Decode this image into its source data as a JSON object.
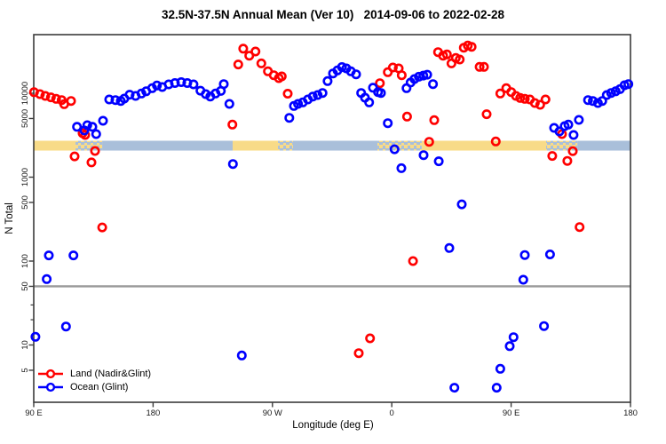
{
  "chart_data": {
    "type": "scatter",
    "title": "32.5N-37.5N Annual Mean (Ver 10)   2014-09-06 to 2022-02-28",
    "xlabel": "Longitude (deg E)",
    "ylabel": "N Total",
    "x_axis": {
      "note": "longitude axis wraps eastward from 90E through 180, 90W, 0 back to 180",
      "domain": [
        90,
        540
      ],
      "ticks": [
        {
          "value": 90,
          "label": "90 E"
        },
        {
          "value": 180,
          "label": "180"
        },
        {
          "value": 270,
          "label": "90 W"
        },
        {
          "value": 360,
          "label": "0"
        },
        {
          "value": 450,
          "label": "90 E"
        },
        {
          "value": 540,
          "label": "180"
        }
      ]
    },
    "y_axis": {
      "scale": "log",
      "range": [
        2.1,
        50000
      ],
      "ticks": [
        {
          "value": 10000,
          "label": "10000"
        },
        {
          "value": 5000,
          "label": "5000"
        },
        {
          "value": 1000,
          "label": "1000"
        },
        {
          "value": 500,
          "label": "500"
        },
        {
          "value": 100,
          "label": "100"
        },
        {
          "value": 50,
          "label": "50"
        },
        {
          "value": 10,
          "label": "10"
        },
        {
          "value": 5,
          "label": "5"
        }
      ],
      "minor_ticks": [
        30,
        20
      ]
    },
    "reference_line": {
      "value": 50,
      "color": "#999999"
    },
    "surface_strip": {
      "value_range": [
        2075,
        2715
      ],
      "colors": {
        "land": "#F8DB88",
        "ocean": "#A9BFDA"
      },
      "segments": [
        [
          90,
          121.5,
          "land"
        ],
        [
          121.5,
          141.6,
          "mixed"
        ],
        [
          141.6,
          240,
          "ocean"
        ],
        [
          240,
          274.2,
          "land"
        ],
        [
          274.2,
          285.5,
          "mixed"
        ],
        [
          285.5,
          349.2,
          "ocean"
        ],
        [
          349.2,
          382.6,
          "mixed"
        ],
        [
          382.6,
          476.4,
          "land"
        ],
        [
          476.4,
          499.9,
          "mixed"
        ],
        [
          499.9,
          540,
          "ocean"
        ]
      ]
    },
    "series": [
      {
        "name": "Land (Nadir&Glint)",
        "color": "#FF0000",
        "points": [
          [
            90.2,
            10300
          ],
          [
            94.7,
            9760
          ],
          [
            98.7,
            9290
          ],
          [
            102.9,
            8930
          ],
          [
            106.9,
            8580
          ],
          [
            111.0,
            8290
          ],
          [
            113.0,
            7410
          ],
          [
            118.1,
            8090
          ],
          [
            126.8,
            3340
          ],
          [
            128.8,
            3180
          ],
          [
            136.2,
            2050
          ],
          [
            120.8,
            1770
          ],
          [
            133.5,
            1500
          ],
          [
            141.6,
            252
          ],
          [
            239.8,
            4230
          ],
          [
            244.2,
            22000
          ],
          [
            248.0,
            34000
          ],
          [
            252.5,
            28050
          ],
          [
            257.2,
            31400
          ],
          [
            261.6,
            22700
          ],
          [
            266.6,
            18250
          ],
          [
            271.0,
            16400
          ],
          [
            274.8,
            15130
          ],
          [
            277.0,
            15880
          ],
          [
            281.5,
            9870
          ],
          [
            351.0,
            13180
          ],
          [
            357.0,
            17820
          ],
          [
            360.8,
            20280
          ],
          [
            365.2,
            19780
          ],
          [
            367.5,
            16400
          ],
          [
            371.5,
            5270
          ],
          [
            376.0,
            100
          ],
          [
            388.2,
            2640
          ],
          [
            392.0,
            4780
          ],
          [
            394.9,
            30900
          ],
          [
            398.7,
            28050
          ],
          [
            401.6,
            28970
          ],
          [
            405.0,
            22700
          ],
          [
            408.3,
            26300
          ],
          [
            411.2,
            25230
          ],
          [
            414.3,
            34900
          ],
          [
            417.3,
            36980
          ],
          [
            420.2,
            35730
          ],
          [
            426.2,
            20600
          ],
          [
            429.5,
            20600
          ],
          [
            431.5,
            5620
          ],
          [
            441.8,
            9930
          ],
          [
            446.3,
            11480
          ],
          [
            450.1,
            10320
          ],
          [
            453.6,
            9290
          ],
          [
            456.8,
            8790
          ],
          [
            460.3,
            8580
          ],
          [
            464.1,
            8430
          ],
          [
            467.9,
            7650
          ],
          [
            471.9,
            7280
          ],
          [
            475.9,
            8430
          ],
          [
            438.4,
            2660
          ],
          [
            481.0,
            1790
          ],
          [
            488.4,
            3260
          ],
          [
            496.5,
            2040
          ],
          [
            492.4,
            1560
          ],
          [
            501.6,
            254
          ],
          [
            343.6,
            12
          ],
          [
            335.1,
            8
          ]
        ]
      },
      {
        "name": "Ocean (Glint)",
        "color": "#0000FF",
        "points": [
          [
            146.9,
            8430
          ],
          [
            151.6,
            8290
          ],
          [
            155.6,
            8090
          ],
          [
            158.3,
            8650
          ],
          [
            162.3,
            9620
          ],
          [
            166.8,
            9290
          ],
          [
            171.2,
            9930
          ],
          [
            174.8,
            10560
          ],
          [
            179.3,
            11480
          ],
          [
            182.9,
            12360
          ],
          [
            186.9,
            11850
          ],
          [
            191.8,
            12760
          ],
          [
            196.5,
            13230
          ],
          [
            201.2,
            13550
          ],
          [
            205.8,
            13230
          ],
          [
            210.5,
            12760
          ],
          [
            215.7,
            10740
          ],
          [
            219.7,
            9750
          ],
          [
            223.1,
            9140
          ],
          [
            227.1,
            9930
          ],
          [
            231.1,
            10650
          ],
          [
            233.3,
            12850
          ],
          [
            237.5,
            7460
          ],
          [
            240.2,
            1435
          ],
          [
            122.6,
            3980
          ],
          [
            128.2,
            3600
          ],
          [
            130.4,
            4160
          ],
          [
            134.2,
            3980
          ],
          [
            137.1,
            3260
          ],
          [
            142.2,
            4700
          ],
          [
            91.3,
            12.5
          ],
          [
            114.3,
            16.6
          ],
          [
            99.8,
            61
          ],
          [
            101.4,
            117
          ],
          [
            119.9,
            117
          ],
          [
            282.7,
            5090
          ],
          [
            286.2,
            7060
          ],
          [
            289.3,
            7460
          ],
          [
            292.9,
            7780
          ],
          [
            296.7,
            8430
          ],
          [
            300.5,
            9140
          ],
          [
            304.1,
            9530
          ],
          [
            307.8,
            10070
          ],
          [
            311.6,
            13960
          ],
          [
            315.7,
            17220
          ],
          [
            319.0,
            18710
          ],
          [
            322.4,
            20500
          ],
          [
            325.7,
            19780
          ],
          [
            329.1,
            18240
          ],
          [
            333.1,
            16800
          ],
          [
            336.9,
            10070
          ],
          [
            339.8,
            8850
          ],
          [
            342.9,
            7780
          ],
          [
            345.8,
            11630
          ],
          [
            349.6,
            10320
          ],
          [
            351.8,
            10070
          ],
          [
            371.1,
            11480
          ],
          [
            374.2,
            13440
          ],
          [
            377.1,
            14760
          ],
          [
            380.4,
            15740
          ],
          [
            383.8,
            16240
          ],
          [
            386.7,
            16630
          ],
          [
            391.1,
            12850
          ],
          [
            357.0,
            4400
          ],
          [
            362.1,
            2150
          ],
          [
            367.2,
            1280
          ],
          [
            384.0,
            1830
          ],
          [
            395.4,
            1545
          ],
          [
            412.8,
            475
          ],
          [
            403.4,
            143
          ],
          [
            482.4,
            3870
          ],
          [
            486.4,
            3510
          ],
          [
            490.4,
            4060
          ],
          [
            493.1,
            4230
          ],
          [
            497.1,
            3180
          ],
          [
            501.1,
            4820
          ],
          [
            508.0,
            8290
          ],
          [
            511.6,
            8090
          ],
          [
            515.4,
            7650
          ],
          [
            518.7,
            8090
          ],
          [
            522.1,
            9530
          ],
          [
            525.4,
            10070
          ],
          [
            528.8,
            10560
          ],
          [
            532.1,
            11180
          ],
          [
            535.5,
            12460
          ],
          [
            538.4,
            12850
          ],
          [
            460.3,
            118
          ],
          [
            479.3,
            120
          ],
          [
            459.2,
            60
          ],
          [
            474.8,
            16.8
          ],
          [
            451.8,
            12.4
          ],
          [
            448.9,
            9.7
          ],
          [
            441.8,
            5.2
          ],
          [
            439.1,
            3.1
          ],
          [
            407.2,
            3.1
          ],
          [
            246.9,
            7.5
          ]
        ]
      }
    ],
    "legend": {
      "position": "bottom-left",
      "entries": [
        "Land (Nadir&Glint)",
        "Ocean (Glint)"
      ]
    },
    "style": {
      "axis_color": "#3b3b3b",
      "marker_radius": 4.2,
      "marker_stroke": 2.6
    }
  }
}
